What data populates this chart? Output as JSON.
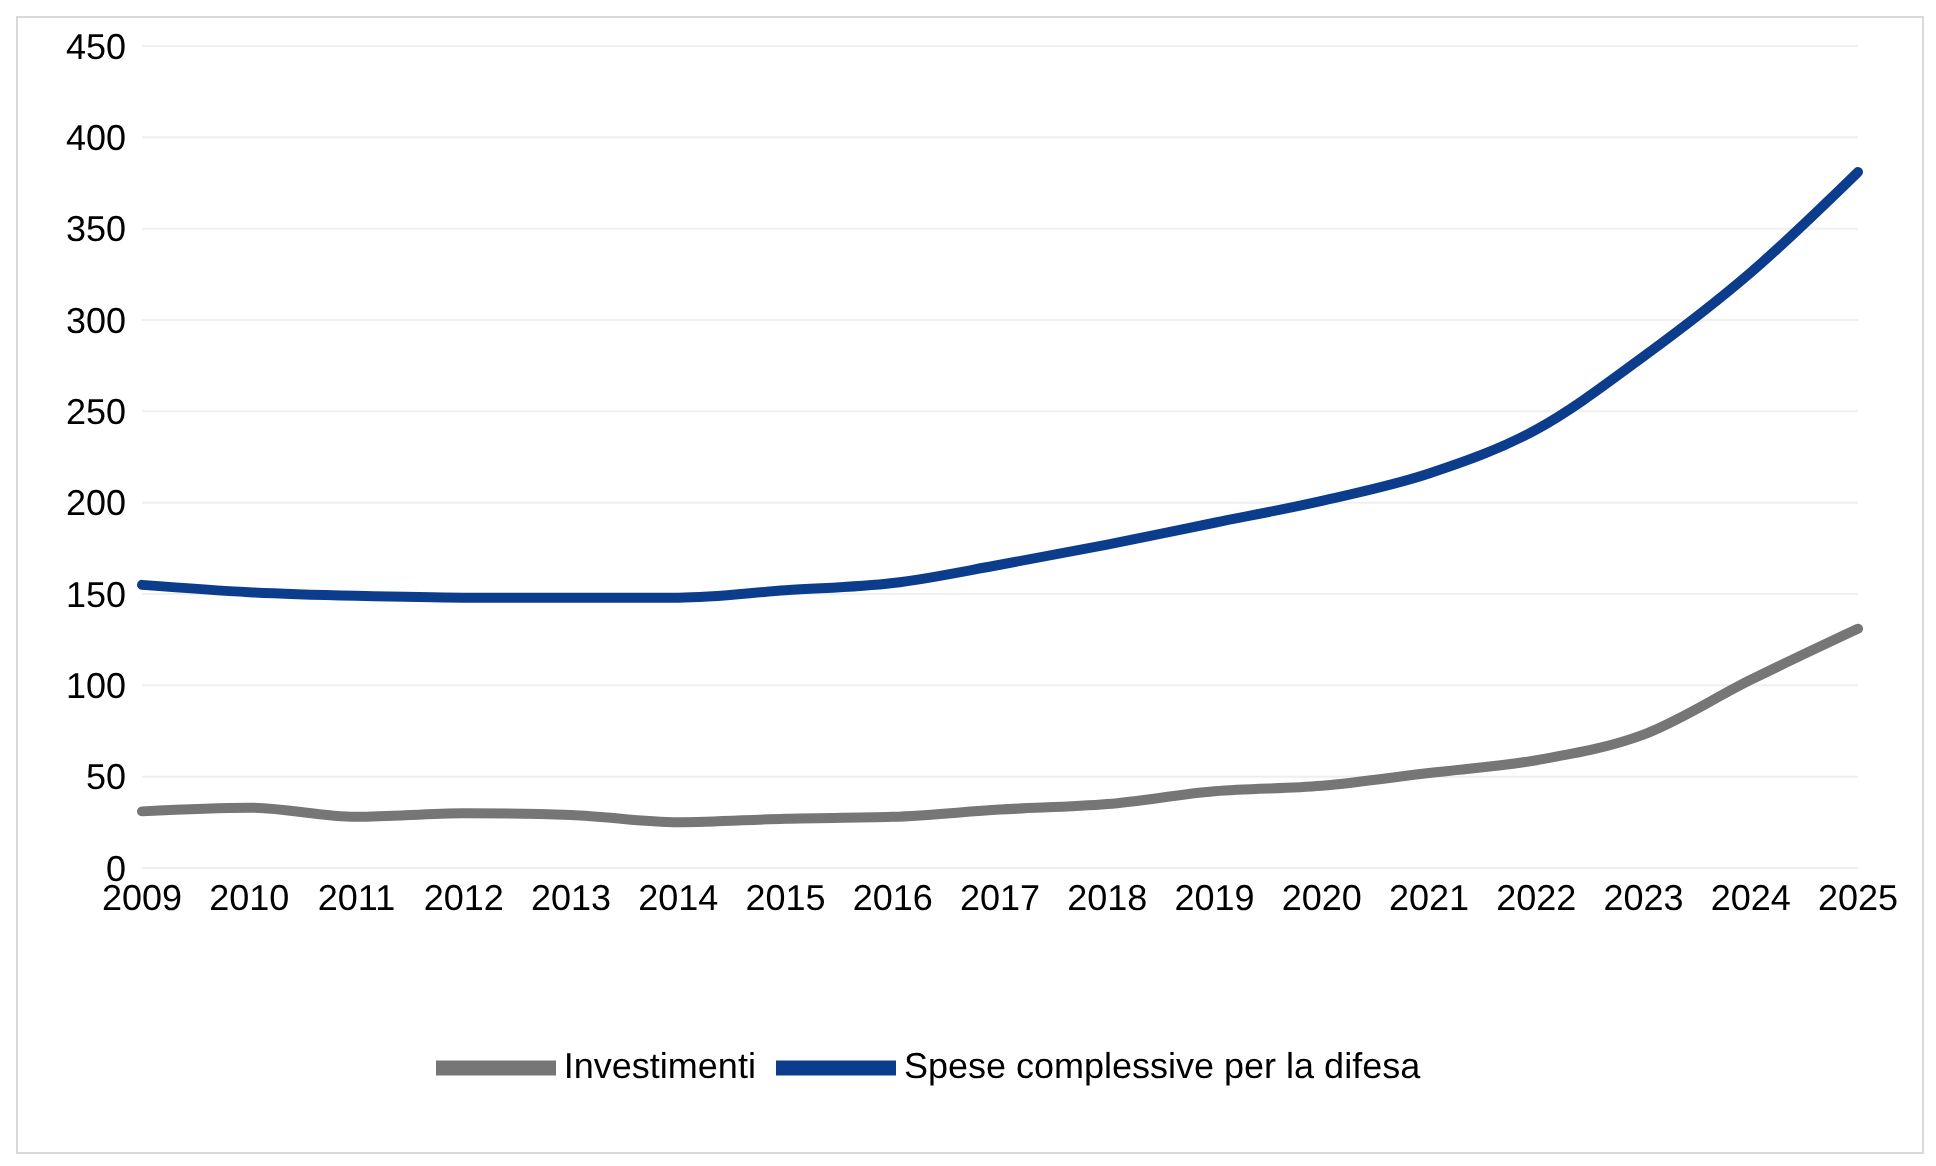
{
  "chart_data": {
    "type": "line",
    "categories": [
      "2009",
      "2010",
      "2011",
      "2012",
      "2013",
      "2014",
      "2015",
      "2016",
      "2017",
      "2018",
      "2019",
      "2020",
      "2021",
      "2022",
      "2023",
      "2024",
      "2025"
    ],
    "series": [
      {
        "name": "Spese complessive per la difesa",
        "color": "#0b3d8c",
        "values": [
          155,
          151,
          149,
          148,
          148,
          148,
          152,
          156,
          166,
          177,
          189,
          201,
          216,
          240,
          280,
          326,
          381
        ]
      },
      {
        "name": "Investimenti",
        "color": "#767676",
        "values": [
          31,
          33,
          28,
          30,
          29,
          25,
          27,
          28,
          32,
          35,
          42,
          45,
          52,
          59,
          73,
          103,
          131
        ]
      }
    ],
    "ylim": [
      0,
      450
    ],
    "yticks": [
      0,
      50,
      100,
      150,
      200,
      250,
      300,
      350,
      400,
      450
    ],
    "grid": "y",
    "legend": "bottom",
    "marker": "none",
    "line_style": "solid"
  }
}
